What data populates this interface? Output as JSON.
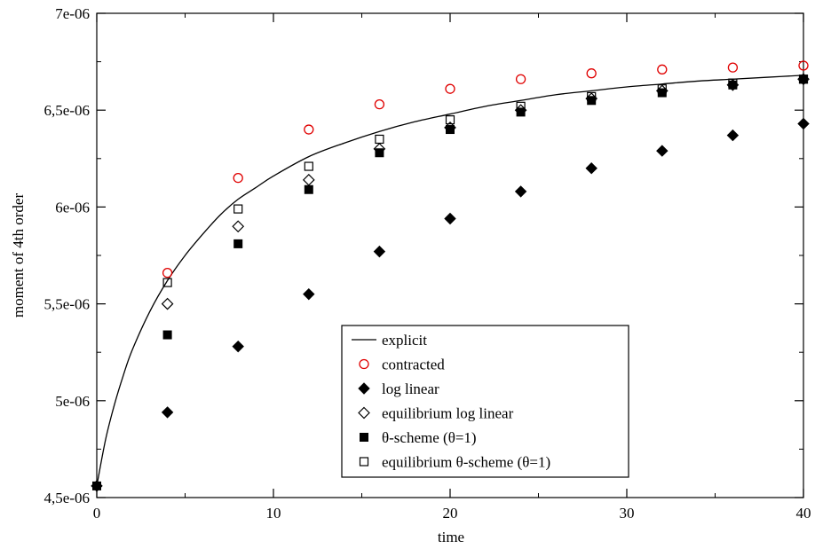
{
  "chart_data": {
    "type": "scatter",
    "title": "",
    "xlabel": "time",
    "ylabel": "moment of 4th order",
    "xlim": [
      0,
      40
    ],
    "ylim": [
      4.5e-06,
      7e-06
    ],
    "x_ticks": [
      0,
      10,
      20,
      30,
      40
    ],
    "x_tick_labels": [
      "0",
      "10",
      "20",
      "30",
      "40"
    ],
    "y_ticks": [
      4.5e-06,
      5e-06,
      5.5e-06,
      6e-06,
      6.5e-06,
      7e-06
    ],
    "y_tick_labels": [
      "4,5e-06",
      "5e-06",
      "5,5e-06",
      "6e-06",
      "6,5e-06",
      "7e-06"
    ],
    "grid": false,
    "legend_position": "lower-right",
    "series": [
      {
        "name": "explicit",
        "style": "line",
        "color": "#000000",
        "x": [
          0,
          0.5,
          1,
          1.5,
          2,
          3,
          4,
          5,
          6,
          7,
          8,
          9,
          10,
          12,
          14,
          16,
          18,
          20,
          22,
          24,
          26,
          28,
          30,
          32,
          34,
          36,
          38,
          40
        ],
        "y": [
          4.56e-06,
          4.8e-06,
          4.98e-06,
          5.13e-06,
          5.26e-06,
          5.46e-06,
          5.62e-06,
          5.75e-06,
          5.86e-06,
          5.96e-06,
          6.04e-06,
          6.1e-06,
          6.16e-06,
          6.26e-06,
          6.33e-06,
          6.39e-06,
          6.44e-06,
          6.48e-06,
          6.52e-06,
          6.55e-06,
          6.58e-06,
          6.6e-06,
          6.62e-06,
          6.635e-06,
          6.65e-06,
          6.66e-06,
          6.67e-06,
          6.68e-06
        ]
      },
      {
        "name": "contracted",
        "style": "open-circle",
        "color": "#e00000",
        "x": [
          4,
          8,
          12,
          16,
          20,
          24,
          28,
          32,
          36,
          40
        ],
        "y": [
          5.66e-06,
          6.15e-06,
          6.4e-06,
          6.53e-06,
          6.61e-06,
          6.66e-06,
          6.69e-06,
          6.71e-06,
          6.72e-06,
          6.73e-06
        ]
      },
      {
        "name": "log linear",
        "style": "filled-diamond",
        "color": "#000000",
        "x": [
          0,
          4,
          8,
          12,
          16,
          20,
          24,
          28,
          32,
          36,
          40
        ],
        "y": [
          4.56e-06,
          4.94e-06,
          5.28e-06,
          5.55e-06,
          5.77e-06,
          5.94e-06,
          6.08e-06,
          6.2e-06,
          6.29e-06,
          6.37e-06,
          6.43e-06
        ]
      },
      {
        "name": "equilibrium log linear",
        "style": "open-diamond",
        "color": "#000000",
        "x": [
          4,
          8,
          12,
          16,
          20,
          24,
          28,
          32,
          36,
          40
        ],
        "y": [
          5.5e-06,
          5.9e-06,
          6.14e-06,
          6.3e-06,
          6.41e-06,
          6.5e-06,
          6.56e-06,
          6.6e-06,
          6.63e-06,
          6.66e-06
        ]
      },
      {
        "name": "θ-scheme (θ=1)",
        "style": "filled-square",
        "color": "#000000",
        "x": [
          0,
          4,
          8,
          12,
          16,
          20,
          24,
          28,
          32,
          36,
          40
        ],
        "y": [
          4.56e-06,
          5.34e-06,
          5.81e-06,
          6.09e-06,
          6.28e-06,
          6.4e-06,
          6.49e-06,
          6.55e-06,
          6.59e-06,
          6.63e-06,
          6.66e-06
        ]
      },
      {
        "name": "equilibrium θ-scheme (θ=1)",
        "style": "open-square",
        "color": "#000000",
        "x": [
          4,
          8,
          12,
          16,
          20,
          24,
          28,
          32,
          36,
          40
        ],
        "y": [
          5.61e-06,
          5.99e-06,
          6.21e-06,
          6.35e-06,
          6.45e-06,
          6.52e-06,
          6.57e-06,
          6.61e-06,
          6.64e-06,
          6.66e-06
        ]
      }
    ]
  }
}
